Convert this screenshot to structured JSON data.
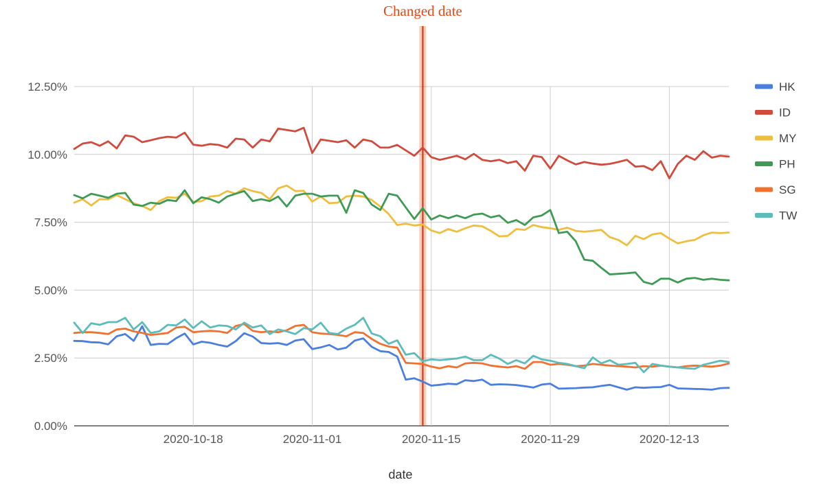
{
  "chart_data": {
    "type": "line",
    "xlabel": "date",
    "x_ticks": [
      "2020-10-18",
      "2020-11-01",
      "2020-11-15",
      "2020-11-29",
      "2020-12-13"
    ],
    "y_ticks": [
      "0.00%",
      "2.50%",
      "5.00%",
      "7.50%",
      "10.00%",
      "12.50%"
    ],
    "ylim": [
      0,
      12.5
    ],
    "x_start": "2020-10-04",
    "x_end": "2020-12-20",
    "grid": true,
    "legend_position": "right",
    "annotation": {
      "text": "Changed date",
      "date": "2020-11-14",
      "color": "#e34a17"
    },
    "series": [
      {
        "name": "HK",
        "color": "#4a7fe0",
        "values": [
          3.13,
          3.12,
          3.08,
          3.07,
          3.0,
          3.3,
          3.38,
          3.13,
          3.67,
          2.98,
          3.02,
          3.01,
          3.23,
          3.4,
          3.0,
          3.1,
          3.06,
          2.98,
          2.92,
          3.12,
          3.41,
          3.29,
          3.05,
          3.03,
          3.05,
          2.98,
          3.14,
          3.19,
          2.83,
          2.89,
          2.98,
          2.81,
          2.88,
          3.14,
          3.22,
          2.91,
          2.75,
          2.72,
          2.55,
          1.7,
          1.75,
          1.63,
          1.48,
          1.51,
          1.55,
          1.53,
          1.68,
          1.65,
          1.7,
          1.51,
          1.53,
          1.52,
          1.5,
          1.46,
          1.41,
          1.52,
          1.55,
          1.37,
          1.38,
          1.39,
          1.41,
          1.42,
          1.47,
          1.51,
          1.42,
          1.33,
          1.42,
          1.4,
          1.42,
          1.43,
          1.51,
          1.38,
          1.37,
          1.36,
          1.35,
          1.33,
          1.39,
          1.4
        ]
      },
      {
        "name": "ID",
        "color": "#d04a3d",
        "values": [
          10.2,
          10.4,
          10.45,
          10.32,
          10.48,
          10.22,
          10.7,
          10.65,
          10.45,
          10.52,
          10.6,
          10.65,
          10.62,
          10.8,
          10.36,
          10.32,
          10.38,
          10.35,
          10.25,
          10.58,
          10.55,
          10.25,
          10.55,
          10.48,
          10.95,
          10.9,
          10.85,
          10.98,
          10.05,
          10.55,
          10.5,
          10.45,
          10.52,
          10.25,
          10.55,
          10.48,
          10.25,
          10.25,
          10.35,
          10.15,
          9.95,
          10.25,
          9.9,
          9.8,
          9.87,
          9.95,
          9.82,
          10.02,
          9.8,
          9.75,
          9.8,
          9.68,
          9.75,
          9.4,
          9.95,
          9.9,
          9.48,
          9.95,
          9.78,
          9.63,
          9.72,
          9.66,
          9.62,
          9.65,
          9.72,
          9.8,
          9.55,
          9.57,
          9.42,
          9.75,
          9.12,
          9.65,
          9.95,
          9.8,
          10.12,
          9.88,
          9.95,
          9.92
        ]
      },
      {
        "name": "MY",
        "color": "#efbe3e",
        "values": [
          8.22,
          8.35,
          8.12,
          8.35,
          8.34,
          8.5,
          8.35,
          8.2,
          8.1,
          7.95,
          8.28,
          8.42,
          8.4,
          8.55,
          8.25,
          8.28,
          8.45,
          8.48,
          8.65,
          8.55,
          8.75,
          8.65,
          8.58,
          8.35,
          8.75,
          8.85,
          8.65,
          8.66,
          8.26,
          8.45,
          8.2,
          8.22,
          8.45,
          8.48,
          8.45,
          8.32,
          8.08,
          7.8,
          7.4,
          7.45,
          7.38,
          7.42,
          7.2,
          7.1,
          7.25,
          7.15,
          7.28,
          7.38,
          7.35,
          7.18,
          6.98,
          7.0,
          7.25,
          7.22,
          7.4,
          7.32,
          7.28,
          7.22,
          7.3,
          7.18,
          7.15,
          7.18,
          7.22,
          6.95,
          6.85,
          6.65,
          7.0,
          6.88,
          7.05,
          7.1,
          6.9,
          6.72,
          6.8,
          6.85,
          7.02,
          7.12,
          7.1,
          7.12
        ]
      },
      {
        "name": "PH",
        "color": "#3f9a55",
        "values": [
          8.5,
          8.38,
          8.55,
          8.48,
          8.4,
          8.55,
          8.58,
          8.15,
          8.1,
          8.22,
          8.18,
          8.32,
          8.28,
          8.68,
          8.2,
          8.42,
          8.35,
          8.22,
          8.45,
          8.55,
          8.65,
          8.28,
          8.35,
          8.28,
          8.45,
          8.08,
          8.48,
          8.55,
          8.55,
          8.45,
          8.48,
          8.48,
          7.85,
          8.68,
          8.58,
          8.15,
          7.95,
          8.55,
          8.48,
          8.05,
          7.62,
          8.02,
          7.6,
          7.75,
          7.65,
          7.75,
          7.65,
          7.78,
          7.82,
          7.68,
          7.75,
          7.48,
          7.58,
          7.4,
          7.68,
          7.75,
          7.95,
          7.1,
          7.15,
          6.8,
          6.12,
          6.08,
          5.82,
          5.58,
          5.6,
          5.62,
          5.65,
          5.3,
          5.22,
          5.42,
          5.42,
          5.28,
          5.42,
          5.45,
          5.38,
          5.42,
          5.38,
          5.36
        ]
      },
      {
        "name": "SG",
        "color": "#ef7230",
        "values": [
          3.42,
          3.45,
          3.45,
          3.42,
          3.38,
          3.55,
          3.58,
          3.48,
          3.42,
          3.35,
          3.38,
          3.42,
          3.62,
          3.65,
          3.45,
          3.48,
          3.5,
          3.48,
          3.42,
          3.68,
          3.75,
          3.5,
          3.45,
          3.48,
          3.45,
          3.52,
          3.68,
          3.72,
          3.45,
          3.4,
          3.38,
          3.35,
          3.3,
          3.45,
          3.42,
          3.2,
          3.02,
          2.92,
          2.88,
          2.32,
          2.3,
          2.28,
          2.18,
          2.12,
          2.2,
          2.15,
          2.3,
          2.32,
          2.3,
          2.22,
          2.18,
          2.15,
          2.2,
          2.1,
          2.35,
          2.35,
          2.25,
          2.28,
          2.25,
          2.2,
          2.22,
          2.28,
          2.25,
          2.22,
          2.2,
          2.18,
          2.15,
          2.2,
          2.18,
          2.22,
          2.18,
          2.15,
          2.2,
          2.22,
          2.2,
          2.18,
          2.22,
          2.3
        ]
      },
      {
        "name": "TW",
        "color": "#5cbcbc",
        "values": [
          3.8,
          3.42,
          3.78,
          3.72,
          3.82,
          3.82,
          3.98,
          3.55,
          3.82,
          3.42,
          3.48,
          3.72,
          3.7,
          3.92,
          3.6,
          3.85,
          3.62,
          3.7,
          3.68,
          3.55,
          3.8,
          3.62,
          3.7,
          3.38,
          3.55,
          3.48,
          3.38,
          3.6,
          3.55,
          3.8,
          3.42,
          3.38,
          3.58,
          3.72,
          3.98,
          3.4,
          3.3,
          3.02,
          3.15,
          2.62,
          2.68,
          2.38,
          2.45,
          2.42,
          2.45,
          2.48,
          2.55,
          2.42,
          2.42,
          2.62,
          2.48,
          2.28,
          2.42,
          2.3,
          2.58,
          2.45,
          2.4,
          2.32,
          2.28,
          2.2,
          2.12,
          2.52,
          2.3,
          2.42,
          2.25,
          2.28,
          2.32,
          1.98,
          2.28,
          2.22,
          2.18,
          2.15,
          2.12,
          2.1,
          2.25,
          2.32,
          2.4,
          2.35
        ]
      }
    ]
  }
}
